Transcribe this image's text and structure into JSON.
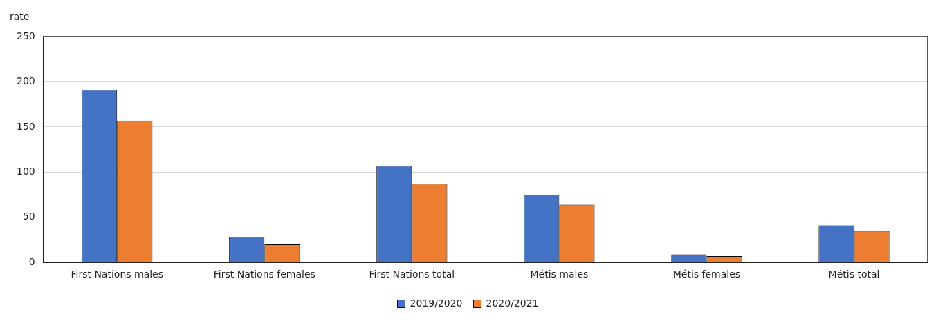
{
  "chart_data": {
    "type": "bar",
    "ylabel": "rate",
    "categories": [
      "First Nations males",
      "First Nations females",
      "First Nations total",
      "Métis males",
      "Métis females",
      "Métis total"
    ],
    "series": [
      {
        "name": "2019/2020",
        "color": "#4472c4",
        "values": [
          191,
          28,
          107,
          75,
          9,
          41
        ]
      },
      {
        "name": "2020/2021",
        "color": "#ed7d31",
        "values": [
          157,
          20,
          87,
          64,
          7,
          35
        ]
      }
    ],
    "ylim": [
      0,
      250
    ],
    "yticks": [
      0,
      50,
      100,
      150,
      200,
      250
    ],
    "grid": "y",
    "legend": "bottom"
  }
}
